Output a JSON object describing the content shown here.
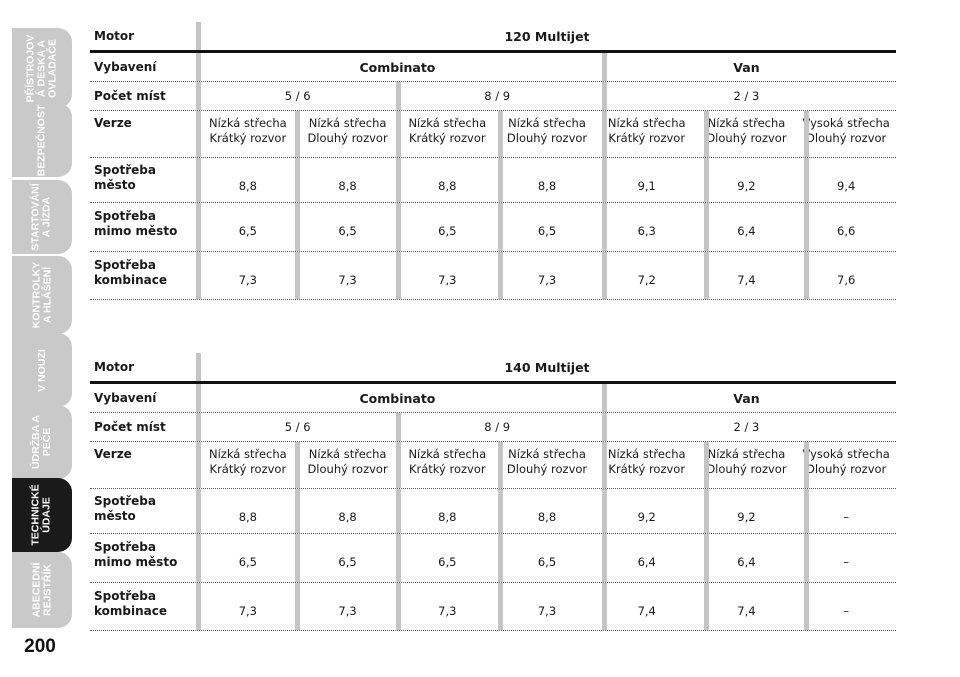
{
  "sidebar": {
    "tabs": [
      {
        "label": "PŘÍSTROJOV\nÁ DESKA A\nOVLADAČE"
      },
      {
        "label": "BEZPEČNOST"
      },
      {
        "label": "STARTOVÁNÍ\nA JÍZDA"
      },
      {
        "label": "KONTROLKY\nA HLÁŠENÍ"
      },
      {
        "label": "V NOUZI"
      },
      {
        "label": "ÚDRŽBA A\nPÉČE"
      },
      {
        "label": "TECHNICKÉ\nÚDAJE"
      },
      {
        "label": "ABECEDNÍ\nREJSTŘÍK"
      }
    ],
    "page_number": "200"
  },
  "labels": {
    "motor": "Motor",
    "vybaveni": "Vybavení",
    "pocet_mist": "Počet míst",
    "verze": "Verze",
    "spotreba_mesto": "Spotřeba\nměsto",
    "spotreba_mimo": "Spotřeba\nmimo město",
    "spotreba_komb": "Spotřeba\nkombinace"
  },
  "tables": [
    {
      "motor": "120 Multijet",
      "vybaveni": [
        "Combinato",
        "Van"
      ],
      "pocet_mist": [
        "5 / 6",
        "8 / 9",
        "2 / 3"
      ],
      "verze": [
        "Nízká střecha\nKrátký rozvor",
        "Nízká střecha\nDlouhý rozvor",
        "Nízká střecha\nKrátký rozvor",
        "Nízká střecha\nDlouhý rozvor",
        "Nízká střecha\nKrátký rozvor",
        "Nízká střecha\nDlouhý rozvor",
        "Vysoká střecha\nDlouhý rozvor"
      ],
      "mesto": [
        "8,8",
        "8,8",
        "8,8",
        "8,8",
        "9,1",
        "9,2",
        "9,4"
      ],
      "mimo": [
        "6,5",
        "6,5",
        "6,5",
        "6,5",
        "6,3",
        "6,4",
        "6,6"
      ],
      "kombinace": [
        "7,3",
        "7,3",
        "7,3",
        "7,3",
        "7,2",
        "7,4",
        "7,6"
      ]
    },
    {
      "motor": "140 Multijet",
      "vybaveni": [
        "Combinato",
        "Van"
      ],
      "pocet_mist": [
        "5 / 6",
        "8 / 9",
        "2 / 3"
      ],
      "verze": [
        "Nízká střecha\nKrátký rozvor",
        "Nízká střecha\nDlouhý rozvor",
        "Nízká střecha\nKrátký rozvor",
        "Nízká střecha\nDlouhý rozvor",
        "Nízká střecha\nKrátký rozvor",
        "Nízká střecha\nDlouhý rozvor",
        "Vysoká střecha\nDlouhý rozvor"
      ],
      "mesto": [
        "8,8",
        "8,8",
        "8,8",
        "8,8",
        "9,2",
        "9,2",
        "–"
      ],
      "mimo": [
        "6,5",
        "6,5",
        "6,5",
        "6,5",
        "6,4",
        "6,4",
        "–"
      ],
      "kombinace": [
        "7,3",
        "7,3",
        "7,3",
        "7,3",
        "7,4",
        "7,4",
        "–"
      ]
    }
  ],
  "colors": {
    "tab_inactive": "#c9c9c9",
    "tab_active": "#1a1a1a",
    "divider": "#c4c4c4"
  }
}
